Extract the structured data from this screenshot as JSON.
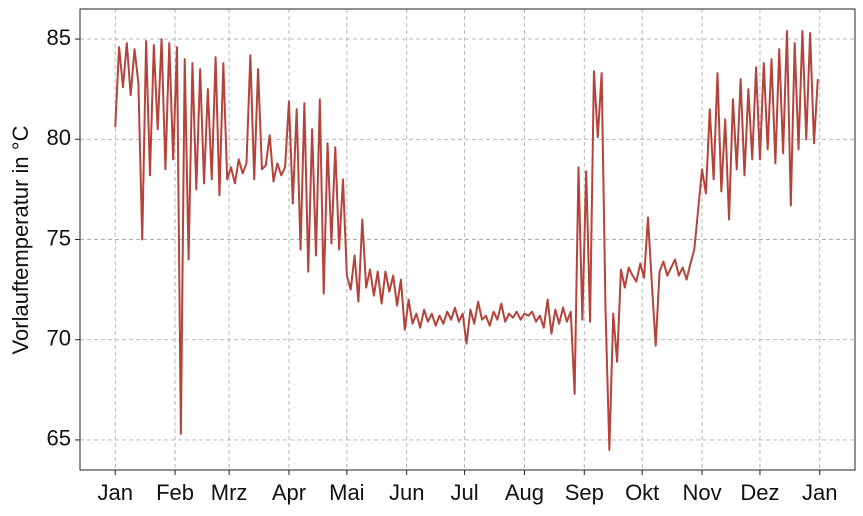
{
  "chart_data": {
    "type": "line",
    "y_label": "Vorlauftemperatur in °C",
    "color": "#b5433a",
    "grid": true,
    "xlim": [
      -18.25,
      383.25
    ],
    "ylim": [
      63.5,
      86.5
    ],
    "yticks": [
      65,
      70,
      75,
      80,
      85
    ],
    "xticks": [
      {
        "value": 0,
        "label": "Jan"
      },
      {
        "value": 31,
        "label": "Feb"
      },
      {
        "value": 59,
        "label": "Mrz"
      },
      {
        "value": 90,
        "label": "Apr"
      },
      {
        "value": 120,
        "label": "Mai"
      },
      {
        "value": 151,
        "label": "Jun"
      },
      {
        "value": 181,
        "label": "Jul"
      },
      {
        "value": 212,
        "label": "Aug"
      },
      {
        "value": 243,
        "label": "Sep"
      },
      {
        "value": 273,
        "label": "Okt"
      },
      {
        "value": 304,
        "label": "Nov"
      },
      {
        "value": 334,
        "label": "Dez"
      },
      {
        "value": 365,
        "label": "Jan"
      }
    ],
    "x": [
      0,
      2,
      4,
      6,
      8,
      10,
      12,
      14,
      16,
      18,
      20,
      22,
      24,
      26,
      28,
      30,
      32,
      34,
      36,
      38,
      40,
      42,
      44,
      46,
      48,
      50,
      52,
      54,
      56,
      58,
      60,
      62,
      64,
      66,
      68,
      70,
      72,
      74,
      76,
      78,
      80,
      82,
      84,
      86,
      88,
      90,
      92,
      94,
      96,
      98,
      100,
      102,
      104,
      106,
      108,
      110,
      112,
      114,
      116,
      118,
      120,
      122,
      124,
      126,
      128,
      130,
      132,
      134,
      136,
      138,
      140,
      142,
      144,
      146,
      148,
      150,
      152,
      154,
      156,
      158,
      160,
      162,
      164,
      166,
      168,
      170,
      172,
      174,
      176,
      178,
      180,
      182,
      184,
      186,
      188,
      190,
      192,
      194,
      196,
      198,
      200,
      202,
      204,
      206,
      208,
      210,
      212,
      214,
      216,
      218,
      220,
      222,
      224,
      226,
      228,
      230,
      232,
      234,
      236,
      238,
      240,
      242,
      244,
      246,
      248,
      250,
      252,
      254,
      256,
      258,
      260,
      262,
      264,
      266,
      268,
      270,
      272,
      274,
      276,
      278,
      280,
      282,
      284,
      286,
      288,
      290,
      292,
      294,
      296,
      298,
      300,
      302,
      304,
      306,
      308,
      310,
      312,
      314,
      316,
      318,
      320,
      322,
      324,
      326,
      328,
      330,
      332,
      334,
      336,
      338,
      340,
      342,
      344,
      346,
      348,
      350,
      352,
      354,
      356,
      358,
      360,
      362,
      364
    ],
    "values": [
      80.6,
      84.6,
      82.6,
      84.8,
      82.2,
      84.5,
      82.8,
      75.0,
      84.9,
      78.2,
      84.7,
      80.5,
      85.0,
      78.5,
      84.8,
      79.0,
      84.6,
      65.3,
      84.0,
      74.0,
      83.8,
      77.5,
      83.5,
      77.8,
      82.5,
      78.0,
      84.1,
      77.2,
      83.8,
      78.0,
      78.6,
      77.8,
      79.0,
      78.3,
      78.8,
      84.2,
      78.0,
      83.5,
      78.5,
      78.7,
      80.2,
      77.9,
      78.8,
      78.2,
      78.6,
      81.9,
      76.8,
      81.5,
      74.5,
      81.8,
      73.4,
      80.5,
      74.2,
      82.0,
      72.3,
      79.8,
      74.8,
      79.6,
      74.5,
      78.0,
      73.2,
      72.5,
      74.2,
      71.9,
      76.0,
      72.6,
      73.5,
      72.2,
      73.4,
      71.8,
      73.4,
      72.4,
      73.2,
      71.7,
      73.0,
      70.5,
      72.0,
      70.8,
      71.3,
      70.6,
      71.5,
      70.9,
      71.3,
      70.7,
      71.2,
      70.8,
      71.4,
      71.0,
      71.6,
      70.9,
      71.3,
      69.8,
      71.5,
      70.8,
      71.9,
      71.0,
      71.2,
      70.7,
      71.4,
      71.0,
      71.8,
      70.9,
      71.3,
      71.1,
      71.4,
      71.0,
      71.3,
      71.2,
      71.4,
      70.9,
      71.2,
      70.6,
      72.0,
      70.3,
      71.5,
      70.8,
      71.6,
      70.9,
      71.4,
      67.3,
      78.6,
      71.0,
      78.4,
      70.9,
      83.4,
      80.1,
      83.3,
      71.5,
      64.5,
      71.3,
      68.9,
      73.5,
      72.6,
      73.6,
      73.2,
      72.9,
      73.8,
      73.1,
      76.1,
      72.8,
      69.7,
      73.4,
      73.9,
      73.2,
      73.6,
      74.0,
      73.2,
      73.6,
      73.0,
      73.8,
      74.5,
      76.5,
      78.5,
      77.3,
      81.5,
      78.0,
      83.3,
      77.4,
      81.0,
      76.0,
      82.0,
      78.5,
      83.0,
      78.2,
      82.5,
      79.0,
      83.6,
      79.0,
      83.8,
      79.5,
      84.0,
      78.8,
      84.5,
      79.3,
      85.4,
      76.7,
      84.8,
      79.5,
      85.4,
      80.0,
      85.3,
      79.8,
      83.0
    ]
  }
}
